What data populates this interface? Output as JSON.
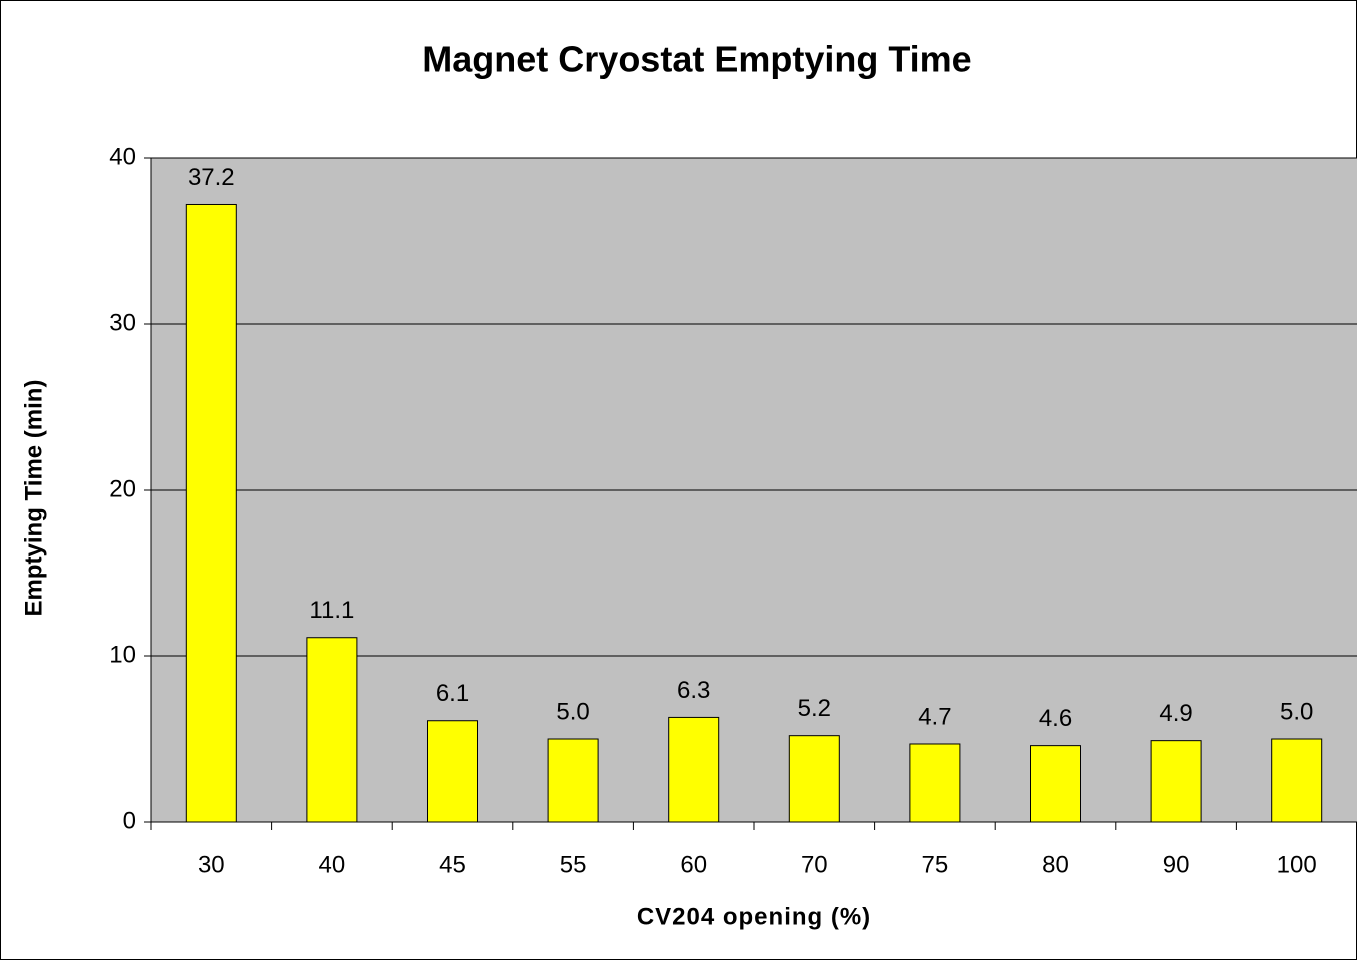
{
  "chart_data": {
    "type": "bar",
    "title": "Magnet Cryostat Emptying Time",
    "x_label": "CV204 opening (%)",
    "y_label": "Emptying Time (min)",
    "categories": [
      "30",
      "40",
      "45",
      "55",
      "60",
      "70",
      "75",
      "80",
      "90",
      "100"
    ],
    "values": [
      37.2,
      11.1,
      6.1,
      5.0,
      6.3,
      5.2,
      4.7,
      4.6,
      4.9,
      5.0
    ],
    "value_labels": [
      "37.2",
      "11.1",
      "6.1",
      "5.0",
      "6.3",
      "5.2",
      "4.7",
      "4.6",
      "4.9",
      "5.0"
    ],
    "color": "#ffff00",
    "ylim": [
      0,
      40
    ],
    "yticks": [
      0,
      10,
      20,
      30,
      40
    ],
    "grid": true
  }
}
